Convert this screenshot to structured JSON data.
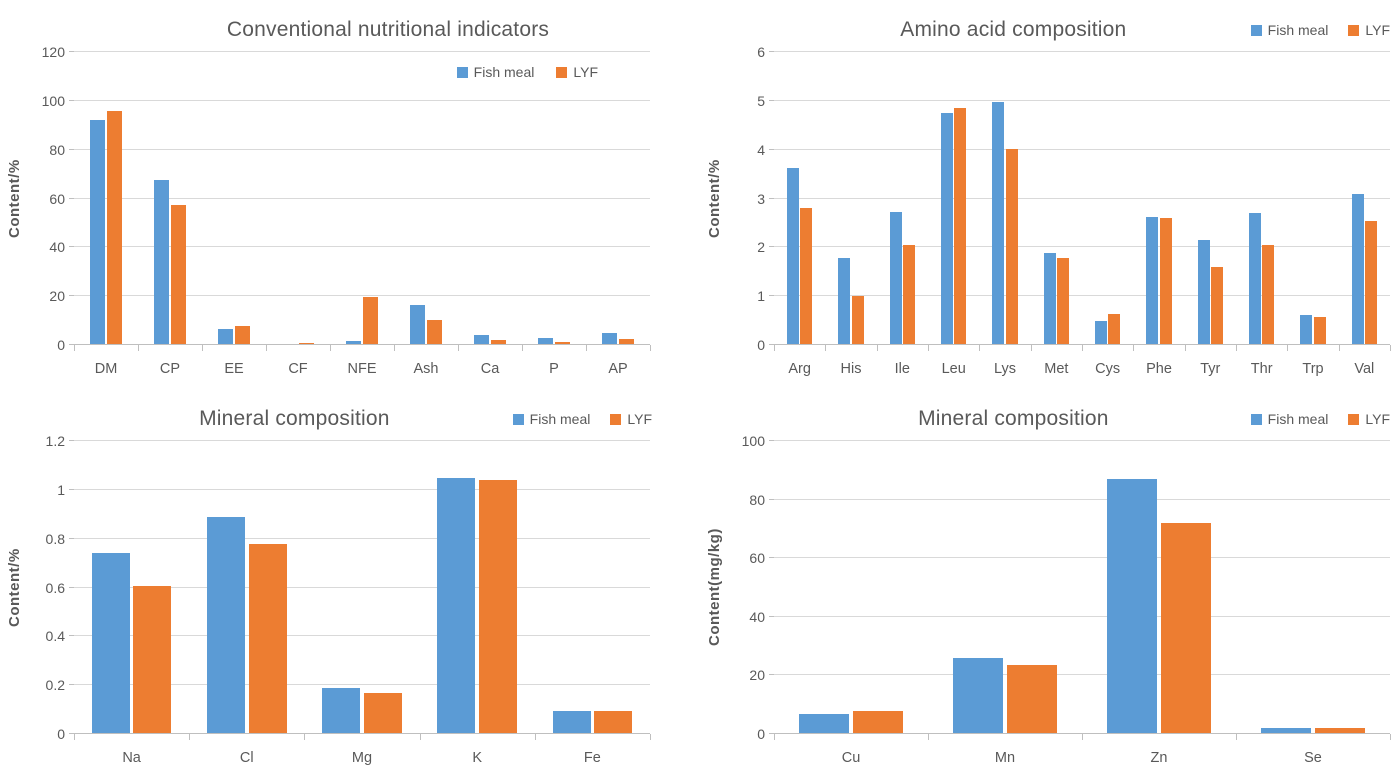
{
  "colors": {
    "fish_meal": "#5b9bd5",
    "lyf": "#ed7d31",
    "gridline": "#d9d9d9",
    "axis_line": "#bfbfbf",
    "text": "#595959"
  },
  "chart_data": [
    {
      "type": "bar",
      "title": "Conventional nutritional indicators",
      "xlabel": "",
      "ylabel": "Content/%",
      "ylim": [
        0,
        120
      ],
      "yticks": [
        "0",
        "20",
        "40",
        "60",
        "80",
        "100",
        "120"
      ],
      "grid": true,
      "legend_position": "inside-top-right",
      "categories": [
        "DM",
        "CP",
        "EE",
        "CF",
        "NFE",
        "Ash",
        "Ca",
        "P",
        "AP"
      ],
      "series": [
        {
          "name": "Fish meal",
          "color": "#5b9bd5",
          "values": [
            92,
            67.5,
            6.4,
            0,
            1.5,
            16.3,
            4,
            3,
            4.8
          ]
        },
        {
          "name": "LYF",
          "color": "#ed7d31",
          "values": [
            96,
            57.4,
            7.6,
            1,
            19.7,
            10.3,
            2,
            1.2,
            2.4
          ]
        }
      ]
    },
    {
      "type": "bar",
      "title": "Amino acid composition",
      "xlabel": "",
      "ylabel": "Content/%",
      "ylim": [
        0,
        6
      ],
      "yticks": [
        "0",
        "1",
        "2",
        "3",
        "4",
        "5",
        "6"
      ],
      "grid": true,
      "legend_position": "top-right",
      "categories": [
        "Arg",
        "His",
        "Ile",
        "Leu",
        "Lys",
        "Met",
        "Cys",
        "Phe",
        "Tyr",
        "Thr",
        "Trp",
        "Val"
      ],
      "series": [
        {
          "name": "Fish meal",
          "color": "#5b9bd5",
          "values": [
            3.63,
            1.78,
            2.72,
            4.75,
            4.98,
            1.89,
            0.49,
            2.62,
            2.16,
            2.7,
            0.62,
            3.1
          ]
        },
        {
          "name": "LYF",
          "color": "#ed7d31",
          "values": [
            2.81,
            1.0,
            2.04,
            4.86,
            4.02,
            1.78,
            0.64,
            2.6,
            1.59,
            2.04,
            0.57,
            2.54
          ]
        }
      ]
    },
    {
      "type": "bar",
      "title": "Mineral composition",
      "xlabel": "",
      "ylabel": "Content/%",
      "ylim": [
        0,
        1.2
      ],
      "yticks": [
        "0",
        "0.2",
        "0.4",
        "0.6",
        "0.8",
        "1",
        "1.2"
      ],
      "grid": true,
      "legend_position": "top-right",
      "categories": [
        "Na",
        "Cl",
        "Mg",
        "K",
        "Fe"
      ],
      "series": [
        {
          "name": "Fish meal",
          "color": "#5b9bd5",
          "values": [
            0.74,
            0.89,
            0.19,
            1.05,
            0.095
          ]
        },
        {
          "name": "LYF",
          "color": "#ed7d31",
          "values": [
            0.605,
            0.78,
            0.17,
            1.04,
            0.095
          ]
        }
      ]
    },
    {
      "type": "bar",
      "title": "Mineral composition",
      "xlabel": "",
      "ylabel": "Content(mg/kg)",
      "ylim": [
        0,
        100
      ],
      "yticks": [
        "0",
        "20",
        "40",
        "60",
        "80",
        "100"
      ],
      "grid": true,
      "legend_position": "top-right",
      "categories": [
        "Cu",
        "Mn",
        "Zn",
        "Se"
      ],
      "series": [
        {
          "name": "Fish meal",
          "color": "#5b9bd5",
          "values": [
            7,
            26,
            87,
            2
          ]
        },
        {
          "name": "LYF",
          "color": "#ed7d31",
          "values": [
            8,
            23.5,
            72,
            2
          ]
        }
      ]
    }
  ]
}
